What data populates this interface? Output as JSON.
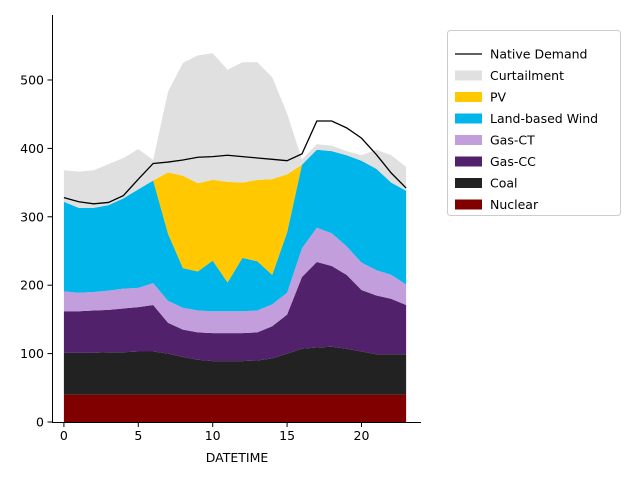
{
  "chart_data": {
    "type": "area",
    "stacked": true,
    "xlabel": "DATETIME",
    "ylabel": "",
    "xlim": [
      -0.8,
      24
    ],
    "ylim": [
      0,
      595
    ],
    "xticks": [
      0,
      5,
      10,
      15,
      20
    ],
    "yticks": [
      0,
      100,
      200,
      300,
      400,
      500
    ],
    "grid": false,
    "legend_position": "right",
    "x": [
      0,
      1,
      2,
      3,
      4,
      5,
      6,
      7,
      8,
      9,
      10,
      11,
      12,
      13,
      14,
      15,
      16,
      17,
      18,
      19,
      20,
      21,
      22,
      23
    ],
    "series": [
      {
        "name": "Nuclear",
        "color": "#800000",
        "values": [
          40,
          40,
          40,
          40,
          40,
          40,
          40,
          40,
          40,
          40,
          40,
          40,
          40,
          40,
          40,
          40,
          40,
          40,
          40,
          40,
          40,
          40,
          40,
          40
        ]
      },
      {
        "name": "Coal",
        "color": "#222222",
        "values": [
          61,
          61,
          61,
          62,
          62,
          63,
          63,
          60,
          55,
          51,
          49,
          49,
          49,
          50,
          53,
          60,
          67,
          69,
          70,
          67,
          63,
          59,
          59,
          59
        ]
      },
      {
        "name": "Gas-CC",
        "color": "#52216c",
        "values": [
          61,
          61,
          62,
          62,
          64,
          65,
          68,
          45,
          40,
          40,
          41,
          41,
          41,
          41,
          47,
          57,
          105,
          125,
          118,
          108,
          90,
          86,
          81,
          72
        ]
      },
      {
        "name": "Gas-CT",
        "color": "#c29edc",
        "values": [
          29,
          27,
          27,
          28,
          29,
          28,
          32,
          32,
          32,
          32,
          32,
          32,
          32,
          32,
          32,
          32,
          42,
          50,
          48,
          42,
          40,
          37,
          35,
          30
        ]
      },
      {
        "name": "Land-based Wind",
        "color": "#00b5ea",
        "values": [
          131,
          124,
          123,
          125,
          132,
          144,
          150,
          98,
          58,
          57,
          74,
          42,
          78,
          72,
          43,
          88,
          122,
          114,
          120,
          133,
          149,
          148,
          135,
          137
        ]
      },
      {
        "name": "PV",
        "color": "#ffc800",
        "values": [
          0,
          0,
          0,
          0,
          0,
          0,
          0,
          90,
          135,
          129,
          118,
          147,
          110,
          119,
          140,
          85,
          0,
          0,
          0,
          0,
          0,
          0,
          0,
          0
        ]
      },
      {
        "name": "Curtailment",
        "color": "#e0e0e0",
        "values": [
          46,
          53,
          55,
          60,
          59,
          59,
          30,
          118,
          165,
          187,
          185,
          164,
          176,
          172,
          149,
          89,
          8,
          8,
          8,
          6,
          8,
          28,
          40,
          35
        ]
      }
    ],
    "line_series": {
      "name": "Native Demand",
      "color": "#000000",
      "values": [
        328,
        322,
        319,
        321,
        331,
        355,
        378,
        380,
        383,
        387,
        388,
        390,
        388,
        386,
        384,
        382,
        392,
        440,
        440,
        430,
        415,
        391,
        364,
        342
      ]
    }
  }
}
